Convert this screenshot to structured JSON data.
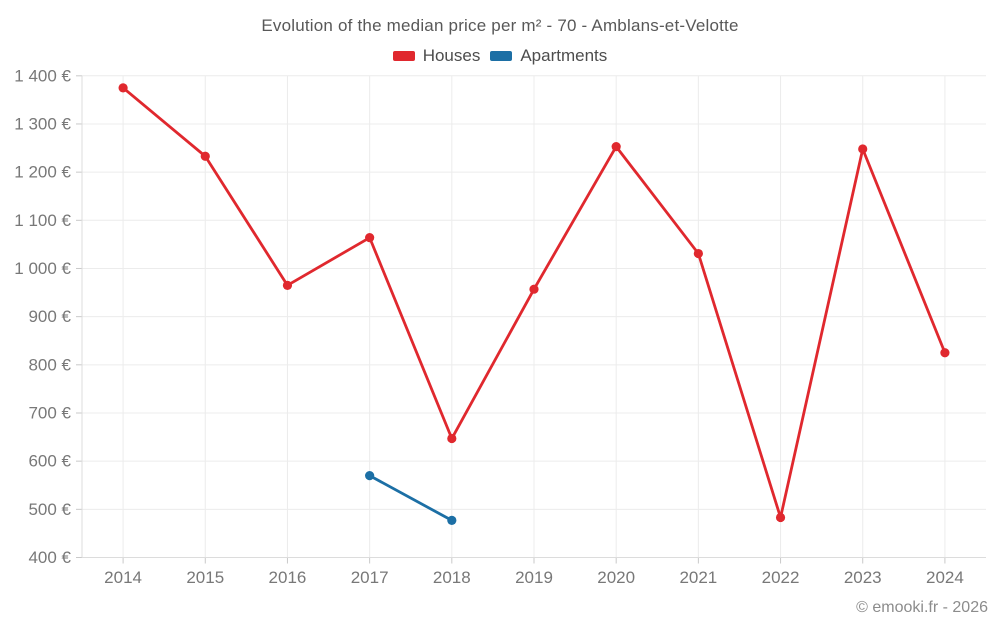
{
  "header": {
    "title": "Evolution of the median price per m² - 70 - Amblans-et-Velotte"
  },
  "chart_data": {
    "type": "line",
    "title": "Evolution of the median price per m² - 70 - Amblans-et-Velotte",
    "categories": [
      "2014",
      "2015",
      "2016",
      "2017",
      "2018",
      "2019",
      "2020",
      "2021",
      "2022",
      "2023",
      "2024"
    ],
    "series": [
      {
        "name": "Houses",
        "color": "#e0282e",
        "values": [
          1375,
          1233,
          965,
          1064,
          647,
          957,
          1253,
          1031,
          483,
          1248,
          825
        ]
      },
      {
        "name": "Apartments",
        "color": "#1c6fa5",
        "values": [
          null,
          null,
          null,
          570,
          477,
          null,
          null,
          null,
          null,
          null,
          null
        ]
      }
    ],
    "xlabel": "",
    "ylabel": "",
    "ylim": [
      400,
      1400
    ],
    "y_tick_step": 100,
    "y_tick_labels": [
      "400 €",
      "500 €",
      "600 €",
      "700 €",
      "800 €",
      "900 €",
      "1 000 €",
      "1 100 €",
      "1 200 €",
      "1 300 €",
      "1 400 €"
    ],
    "currency_unit": "€",
    "grid": true,
    "legend_position": "top"
  },
  "footer": {
    "copyright": "© emooki.fr - 2026"
  }
}
